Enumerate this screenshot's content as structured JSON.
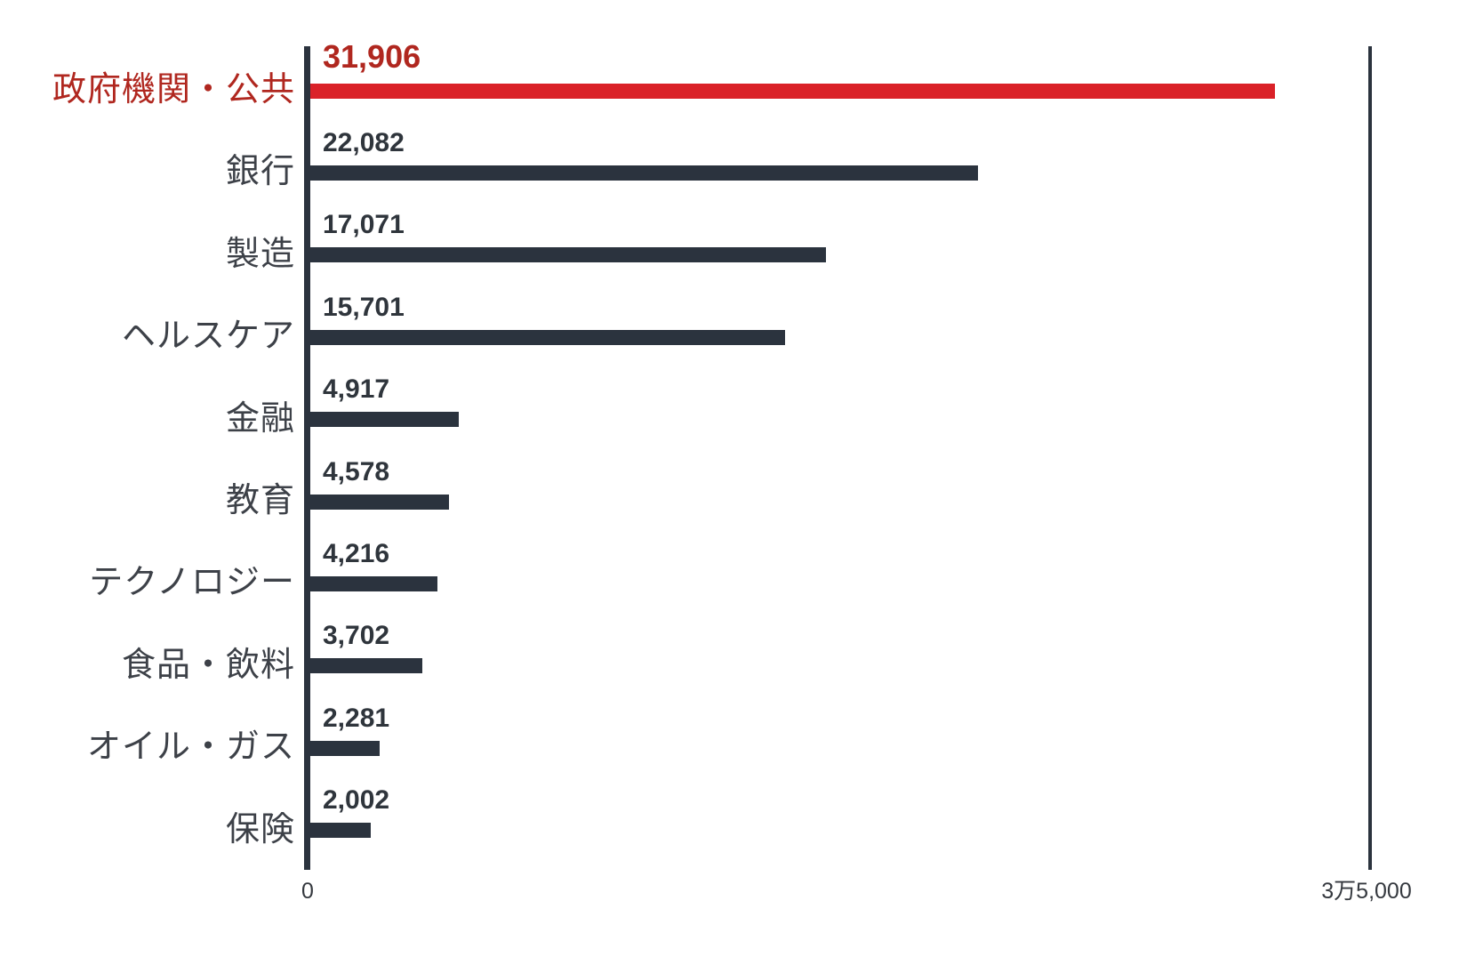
{
  "chart_data": {
    "type": "bar",
    "orientation": "horizontal",
    "title": "",
    "xlabel": "",
    "ylabel": "",
    "xlim": [
      0,
      35000
    ],
    "grid": false,
    "legend": false,
    "categories": [
      "政府機関・公共",
      "銀行",
      "製造",
      "ヘルスケア",
      "金融",
      "教育",
      "テクノロジー",
      "食品・飲料",
      "オイル・ガス",
      "保険"
    ],
    "values": [
      31906,
      22082,
      17071,
      15701,
      4917,
      4578,
      4216,
      3702,
      2281,
      2002
    ],
    "value_labels": [
      "31,906",
      "22,082",
      "17,071",
      "15,701",
      "4,917",
      "4,578",
      "4,216",
      "3,702",
      "2,281",
      "2,002"
    ],
    "highlight_index": 0,
    "x_axis_ticks": [
      "0",
      "3万5,000"
    ],
    "colors": {
      "bar": "#2b333e",
      "highlight_bar": "#da2128",
      "highlight_text": "#b0271f",
      "category_label": "#3d4148",
      "value_label": "#2f353c",
      "axis_line": "#2b333e",
      "tick_label": "#35393f",
      "background": "#ffffff"
    }
  }
}
